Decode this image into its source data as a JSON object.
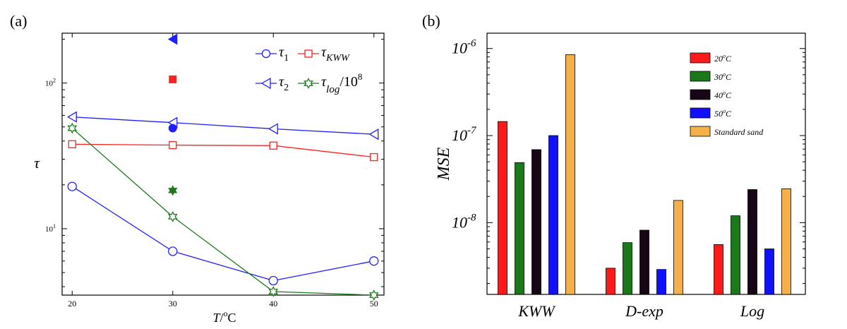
{
  "chart_data": [
    {
      "panel": "(a)",
      "type": "line",
      "y_scale": "log",
      "xlabel": "T/°C",
      "xlabel_parts": {
        "base": "T",
        "sep": "/",
        "sup": "o",
        "unit": "C"
      },
      "ylabel": "τ",
      "xlim": [
        19,
        51
      ],
      "ylim": [
        3.5,
        220
      ],
      "x_ticks": [
        20,
        30,
        40,
        50
      ],
      "y_ticks": [
        {
          "value": 10,
          "base": "10",
          "exp": "1"
        },
        {
          "value": 100,
          "base": "10",
          "exp": "2"
        }
      ],
      "legend_position": "top-right",
      "series": [
        {
          "name": "τ1",
          "label_main": "τ",
          "label_sub": "1",
          "color": "#1f1fff",
          "marker": "circle-open",
          "x": [
            20,
            30,
            40,
            50
          ],
          "values": [
            19.5,
            7.0,
            4.4,
            6.0
          ]
        },
        {
          "name": "τKWW",
          "label_main": "τ",
          "label_sub": "KWW",
          "color": "#ff2020",
          "marker": "square-open",
          "x": [
            20,
            30,
            40,
            50
          ],
          "values": [
            38,
            37.5,
            37.2,
            31
          ]
        },
        {
          "name": "τ2",
          "label_main": "τ",
          "label_sub": "2",
          "color": "#1f1fff",
          "marker": "triangle-left-open",
          "x": [
            20,
            30,
            40,
            50
          ],
          "values": [
            58.5,
            53.5,
            48.5,
            44.5
          ]
        },
        {
          "name": "τlog/10^8",
          "label_main": "τ",
          "label_sub": "log",
          "label_suffix": "/10",
          "label_sup": "8",
          "color": "#1a7a1a",
          "marker": "star-open",
          "x": [
            20,
            30,
            40,
            50
          ],
          "values": [
            49,
            12.1,
            3.7,
            3.5
          ]
        }
      ],
      "filled_points": [
        {
          "series": "τ2",
          "marker": "triangle-left-filled",
          "color": "#1f1fff",
          "x": 30,
          "y": 200
        },
        {
          "series": "τKWW",
          "marker": "square-filled",
          "color": "#ff2020",
          "x": 30,
          "y": 106
        },
        {
          "series": "τ1",
          "marker": "circle-filled",
          "color": "#1f1fff",
          "x": 30,
          "y": 49
        },
        {
          "series": "τlog/10^8",
          "marker": "star-filled",
          "color": "#1a7a1a",
          "x": 30,
          "y": 18.3
        }
      ]
    },
    {
      "panel": "(b)",
      "type": "bar",
      "y_scale": "log",
      "ylabel": "MSE",
      "ylim": [
        1.5e-09,
        1.5e-06
      ],
      "y_ticks": [
        {
          "value": 1e-08,
          "base": "10",
          "exp": "-8"
        },
        {
          "value": 1e-07,
          "base": "10",
          "exp": "-7"
        },
        {
          "value": 1e-06,
          "base": "10",
          "exp": "-6"
        }
      ],
      "categories": [
        "KWW",
        "D-exp",
        "Log"
      ],
      "legend_position": "top-right",
      "series": [
        {
          "name": "20°C",
          "label_num": "20",
          "label_sup": "o",
          "label_unit": "C",
          "color": "#ff1a1a",
          "values": [
            1.45e-07,
            3e-09,
            5.6e-09
          ]
        },
        {
          "name": "30°C",
          "label_num": "30",
          "label_sup": "o",
          "label_unit": "C",
          "color": "#1a7a1a",
          "values": [
            4.9e-08,
            5.9e-09,
            1.2e-08
          ]
        },
        {
          "name": "40°C",
          "label_num": "40",
          "label_sup": "o",
          "label_unit": "C",
          "color": "#160616",
          "values": [
            6.9e-08,
            8.2e-09,
            2.4e-08
          ]
        },
        {
          "name": "50°C",
          "label_num": "50",
          "label_sup": "o",
          "label_unit": "C",
          "color": "#1010ff",
          "values": [
            1e-07,
            2.9e-09,
            5e-09
          ]
        },
        {
          "name": "Standard sand",
          "label_text": "Standard sand",
          "color": "#f6b04a",
          "values": [
            8.5e-07,
            1.8e-08,
            2.45e-08
          ]
        }
      ]
    }
  ]
}
